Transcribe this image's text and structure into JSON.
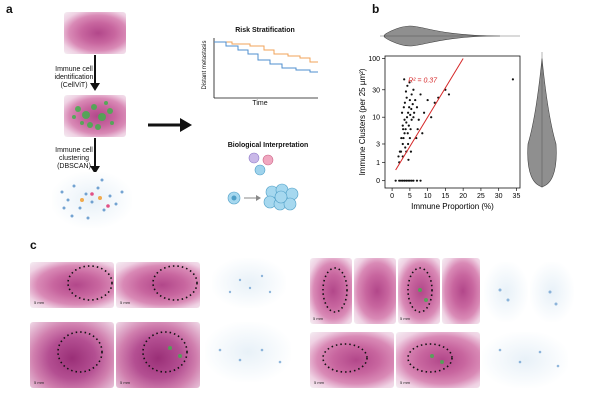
{
  "panels": {
    "a": "a",
    "b": "b",
    "c": "c"
  },
  "panel_a": {
    "step1": "Immune cell identification (CellViT)",
    "step2": "Immune cell clustering (DBSCAN)",
    "risk_title": "Risk Stratification",
    "risk_ylabel": "Distant metastasis",
    "risk_xlabel": "Time",
    "bio_title": "Biological Interpretation",
    "colors": {
      "curve_high": "#f0a35a",
      "curve_low": "#4f8fcf"
    }
  },
  "panel_c": {
    "scale_label": "5 mm"
  },
  "chart_data": {
    "type": "scatter",
    "title": "",
    "xlabel": "Immune Proportion (%)",
    "ylabel": "Immune Clusters (per 25 µm²)",
    "xlim": [
      -2,
      36
    ],
    "x_ticks": [
      "0",
      "5",
      "10",
      "15",
      "20",
      "25",
      "30",
      "35"
    ],
    "y_ticks": [
      "0",
      "1",
      "3",
      "10",
      "30",
      "100"
    ],
    "y_scale": "symlog",
    "annotation": "R² = 0.37",
    "grid": false,
    "fit_line": {
      "x": [
        1,
        20
      ],
      "y": [
        0.5,
        100
      ],
      "color": "#d62728"
    },
    "points": [
      [
        1,
        0
      ],
      [
        2,
        0
      ],
      [
        3,
        0
      ],
      [
        4,
        0
      ],
      [
        5,
        0
      ],
      [
        6,
        0
      ],
      [
        7,
        0
      ],
      [
        8,
        0
      ],
      [
        2.5,
        0
      ],
      [
        4.5,
        0
      ],
      [
        3.5,
        0
      ],
      [
        5.5,
        0
      ],
      [
        2,
        1
      ],
      [
        2.5,
        2
      ],
      [
        3,
        1.5
      ],
      [
        3,
        3
      ],
      [
        3.2,
        4
      ],
      [
        3.5,
        5
      ],
      [
        3.8,
        6
      ],
      [
        4,
        2
      ],
      [
        4,
        8
      ],
      [
        4.2,
        10
      ],
      [
        4.5,
        12
      ],
      [
        4.5,
        3
      ],
      [
        4.8,
        15
      ],
      [
        5,
        4
      ],
      [
        5,
        20
      ],
      [
        5.2,
        6
      ],
      [
        5.5,
        25
      ],
      [
        5.5,
        9
      ],
      [
        6,
        10
      ],
      [
        6,
        30
      ],
      [
        3,
        7
      ],
      [
        3.5,
        9
      ],
      [
        2.8,
        12
      ],
      [
        3.3,
        15
      ],
      [
        3.6,
        18
      ],
      [
        4.1,
        22
      ],
      [
        4.4,
        5
      ],
      [
        4.7,
        7
      ],
      [
        5.1,
        11
      ],
      [
        5.4,
        14
      ],
      [
        5.8,
        17
      ],
      [
        6.2,
        12
      ],
      [
        6.5,
        20
      ],
      [
        7,
        15
      ],
      [
        7.5,
        9
      ],
      [
        8,
        25
      ],
      [
        9,
        12
      ],
      [
        10,
        20
      ],
      [
        11,
        10
      ],
      [
        12,
        18
      ],
      [
        13,
        22
      ],
      [
        15,
        30
      ],
      [
        16,
        25
      ],
      [
        3.9,
        28
      ],
      [
        4.3,
        35
      ],
      [
        2.6,
        4
      ],
      [
        3.1,
        6
      ],
      [
        2.2,
        2
      ],
      [
        1.8,
        1.5
      ],
      [
        3.7,
        2.5
      ],
      [
        4.6,
        1.2
      ],
      [
        5.3,
        2
      ],
      [
        6.8,
        4
      ],
      [
        7.2,
        6
      ],
      [
        8.5,
        5
      ],
      [
        4.9,
        40
      ],
      [
        3.4,
        45
      ],
      [
        34,
        45
      ]
    ],
    "point_color": "#111111"
  }
}
